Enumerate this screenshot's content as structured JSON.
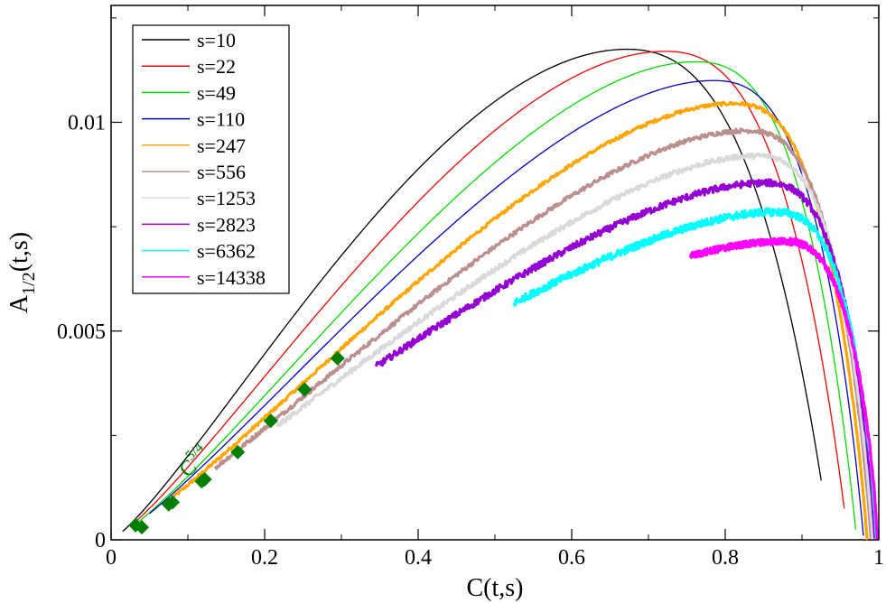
{
  "chart_data": {
    "type": "line",
    "xlabel": "C(t,s)",
    "ylabel_main": "A",
    "ylabel_sub": "1/2",
    "ylabel_tail": "(t,s)",
    "xlim": [
      0,
      1
    ],
    "ylim": [
      0,
      0.0128
    ],
    "xticks": [
      0,
      0.2,
      0.4,
      0.6,
      0.8,
      1
    ],
    "xtick_labels": [
      "0",
      "0.2",
      "0.4",
      "0.6",
      "0.8",
      "1"
    ],
    "yticks": [
      0,
      0.005,
      0.01
    ],
    "ytick_labels": [
      "0",
      "0.005",
      "0.01"
    ],
    "legend_position": "top-left",
    "series": [
      {
        "name": "s=10",
        "color": "#000000",
        "c0": 0.015,
        "c1": 0.925,
        "peak_x": 0.672,
        "peak_y": 0.01175,
        "alpha": 1.25,
        "y_end": 0.00142,
        "noise": 0
      },
      {
        "name": "s=22",
        "color": "#ff0000",
        "c0": 0.025,
        "c1": 0.955,
        "peak_x": 0.722,
        "peak_y": 0.0117,
        "alpha": 1.25,
        "y_end": 0.00075,
        "noise": 0
      },
      {
        "name": "s=49",
        "color": "#00dd00",
        "c0": 0.035,
        "c1": 0.97,
        "peak_x": 0.762,
        "peak_y": 0.01145,
        "alpha": 1.25,
        "y_end": 0.00025,
        "noise": 0
      },
      {
        "name": "s=110",
        "color": "#0000cc",
        "c0": 0.05,
        "c1": 0.98,
        "peak_x": 0.785,
        "peak_y": 0.011,
        "alpha": 1.22,
        "y_end": 0.0001,
        "noise": 0
      },
      {
        "name": "s=247",
        "color": "#ffa500",
        "c0": 0.08,
        "c1": 0.985,
        "peak_x": 0.81,
        "peak_y": 0.01045,
        "alpha": 1.2,
        "y_end": 0.0,
        "noise": 4e-05
      },
      {
        "name": "s=556",
        "color": "#bc8f8f",
        "c0": 0.135,
        "c1": 0.99,
        "peak_x": 0.828,
        "peak_y": 0.0098,
        "alpha": 1.18,
        "y_end": 0.0,
        "noise": 5e-05
      },
      {
        "name": "s=1253",
        "color": "#d9d9d9",
        "c0": 0.215,
        "c1": 0.992,
        "peak_x": 0.842,
        "peak_y": 0.0092,
        "alpha": 1.15,
        "y_end": 0.0,
        "noise": 6e-05
      },
      {
        "name": "s=2823",
        "color": "#9400d3",
        "c0": 0.345,
        "c1": 0.995,
        "peak_x": 0.852,
        "peak_y": 0.00855,
        "alpha": 1.12,
        "y_end": 0.0,
        "noise": 8e-05
      },
      {
        "name": "s=6362",
        "color": "#00ffff",
        "c0": 0.525,
        "c1": 0.997,
        "peak_x": 0.864,
        "peak_y": 0.00785,
        "alpha": 1.08,
        "y_end": 0.0,
        "noise": 9e-05
      },
      {
        "name": "s=14338",
        "color": "#ff00ff",
        "c0": 0.755,
        "c1": 0.998,
        "peak_x": 0.874,
        "peak_y": 0.00715,
        "alpha": 1.0,
        "y_end": 0.0,
        "noise": 8e-05
      }
    ],
    "power_law": {
      "label_base": "C",
      "label_exp": "5/4",
      "color": "#007f00",
      "points": [
        {
          "x": 0.032,
          "y": 0.00035
        },
        {
          "x": 0.04,
          "y": 0.0003
        },
        {
          "x": 0.075,
          "y": 0.00085
        },
        {
          "x": 0.08,
          "y": 0.0009
        },
        {
          "x": 0.118,
          "y": 0.0014
        },
        {
          "x": 0.122,
          "y": 0.00145
        },
        {
          "x": 0.165,
          "y": 0.0021
        },
        {
          "x": 0.208,
          "y": 0.00285
        },
        {
          "x": 0.252,
          "y": 0.0036
        },
        {
          "x": 0.295,
          "y": 0.00435
        }
      ]
    }
  }
}
